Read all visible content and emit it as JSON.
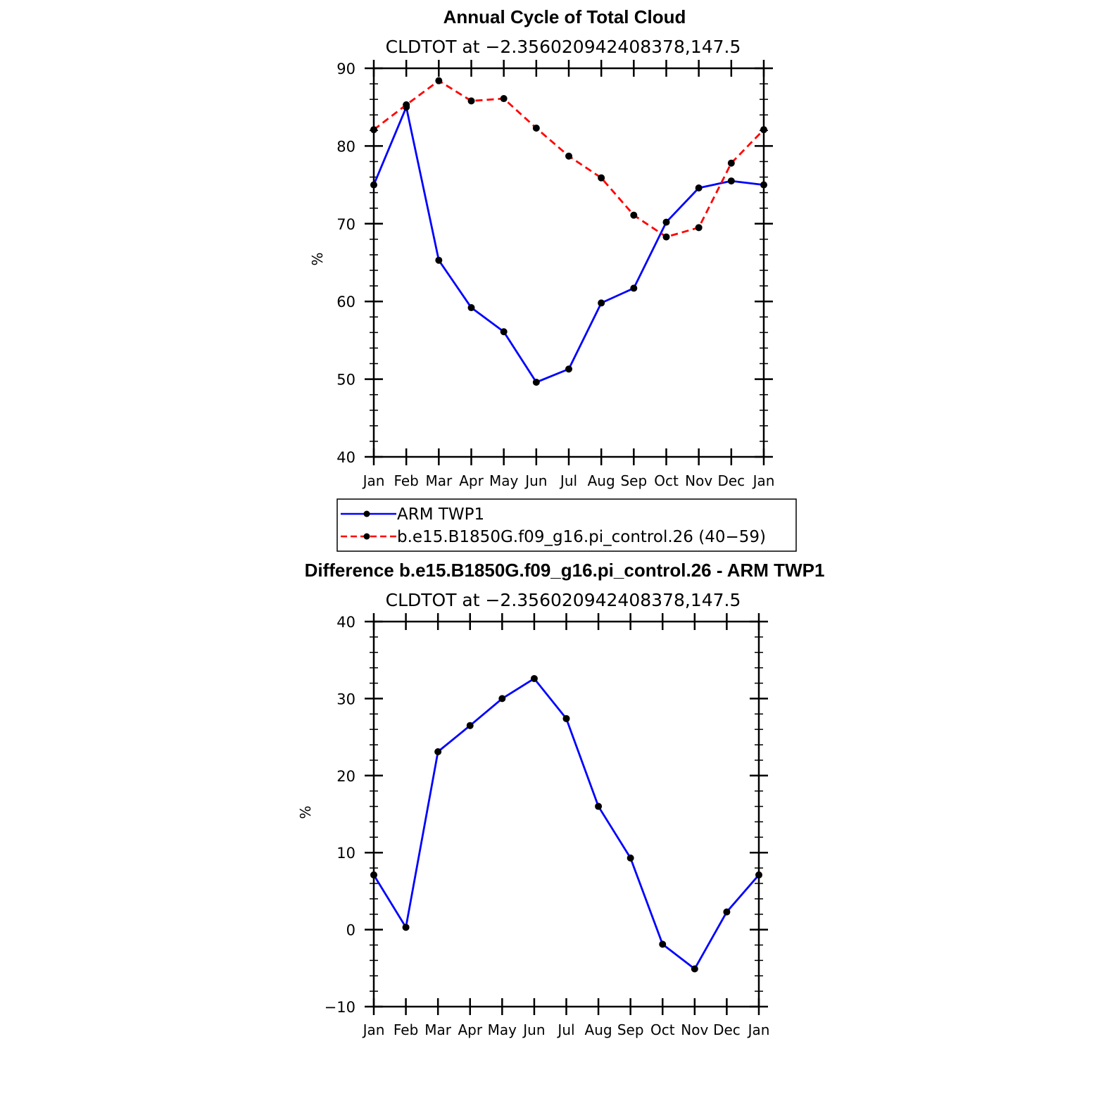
{
  "chart_data": [
    {
      "type": "line",
      "title": "Annual Cycle of Total Cloud",
      "subtitle": "CLDTOT at −2.356020942408378,147.5",
      "xlabel": "",
      "ylabel": "%",
      "categories": [
        "Jan",
        "Feb",
        "Mar",
        "Apr",
        "May",
        "Jun",
        "Jul",
        "Aug",
        "Sep",
        "Oct",
        "Nov",
        "Dec",
        "Jan"
      ],
      "ylim": [
        40,
        90
      ],
      "yticks": [
        40,
        50,
        60,
        70,
        80,
        90
      ],
      "ytick_labels": [
        "40",
        "50",
        "60",
        "70",
        "80",
        "90"
      ],
      "series": [
        {
          "name": "ARM TWP1",
          "color": "#0000ff",
          "dash": "solid",
          "values": [
            75.0,
            85.0,
            65.3,
            59.2,
            56.1,
            49.6,
            51.3,
            59.8,
            61.7,
            70.2,
            74.6,
            75.5,
            75.0
          ]
        },
        {
          "name": "b.e15.B1850G.f09_g16.pi_control.26 (40−59)",
          "color": "#ff0000",
          "dash": "dashed",
          "values": [
            82.1,
            85.3,
            88.4,
            85.8,
            86.1,
            82.3,
            78.7,
            75.9,
            71.1,
            68.3,
            69.5,
            77.8,
            82.1
          ]
        }
      ],
      "legend": {
        "position": "below",
        "entries": [
          "ARM TWP1",
          "b.e15.B1850G.f09_g16.pi_control.26 (40−59)"
        ]
      }
    },
    {
      "type": "line",
      "title": "Difference b.e15.B1850G.f09_g16.pi_control.26 - ARM TWP1",
      "subtitle": "CLDTOT at −2.356020942408378,147.5",
      "xlabel": "",
      "ylabel": "%",
      "categories": [
        "Jan",
        "Feb",
        "Mar",
        "Apr",
        "May",
        "Jun",
        "Jul",
        "Aug",
        "Sep",
        "Oct",
        "Nov",
        "Dec",
        "Jan"
      ],
      "ylim": [
        -10,
        40
      ],
      "yticks": [
        -10,
        0,
        10,
        20,
        30,
        40
      ],
      "ytick_labels": [
        "−10",
        "0",
        "10",
        "20",
        "30",
        "40"
      ],
      "series": [
        {
          "name": "Difference",
          "color": "#0000ff",
          "dash": "solid",
          "values": [
            7.1,
            0.3,
            23.1,
            26.5,
            30.0,
            32.6,
            27.4,
            16.0,
            9.3,
            -1.9,
            -5.1,
            2.3,
            7.1
          ]
        }
      ]
    }
  ]
}
